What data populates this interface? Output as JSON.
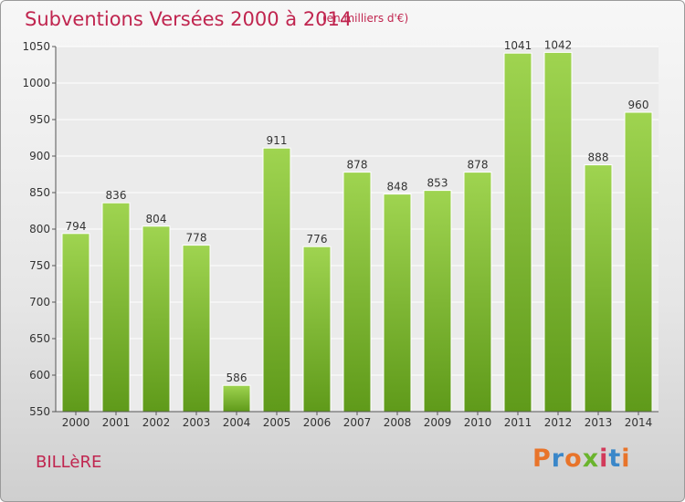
{
  "header": {
    "title": "Subventions Versées 2000 à 2014",
    "unit": "(en milliers d'€)"
  },
  "footer": {
    "commune": "BILLèRE",
    "logo": "Proxiti"
  },
  "colors": {
    "title": "#c0254f",
    "bar_top": "#9fd450",
    "bar_bottom": "#5f9a1a",
    "logo_letters": [
      "#e8742a",
      "#3a87c9",
      "#e8742a",
      "#6ab42d",
      "#d23a5a",
      "#3a87c9",
      "#e8742a"
    ]
  },
  "chart_data": {
    "type": "bar",
    "title": "Subventions Versées 2000 à 2014",
    "subtitle": "(en milliers d'€)",
    "categories": [
      "2000",
      "2001",
      "2002",
      "2003",
      "2004",
      "2005",
      "2006",
      "2007",
      "2008",
      "2009",
      "2010",
      "2011",
      "2012",
      "2013",
      "2014"
    ],
    "values": [
      794,
      836,
      804,
      778,
      586,
      911,
      776,
      878,
      848,
      853,
      878,
      1041,
      1042,
      888,
      960
    ],
    "ylim": [
      550,
      1050
    ],
    "yticks": [
      550,
      600,
      650,
      700,
      750,
      800,
      850,
      900,
      950,
      1000,
      1050
    ],
    "grid": true,
    "legend": "none"
  }
}
